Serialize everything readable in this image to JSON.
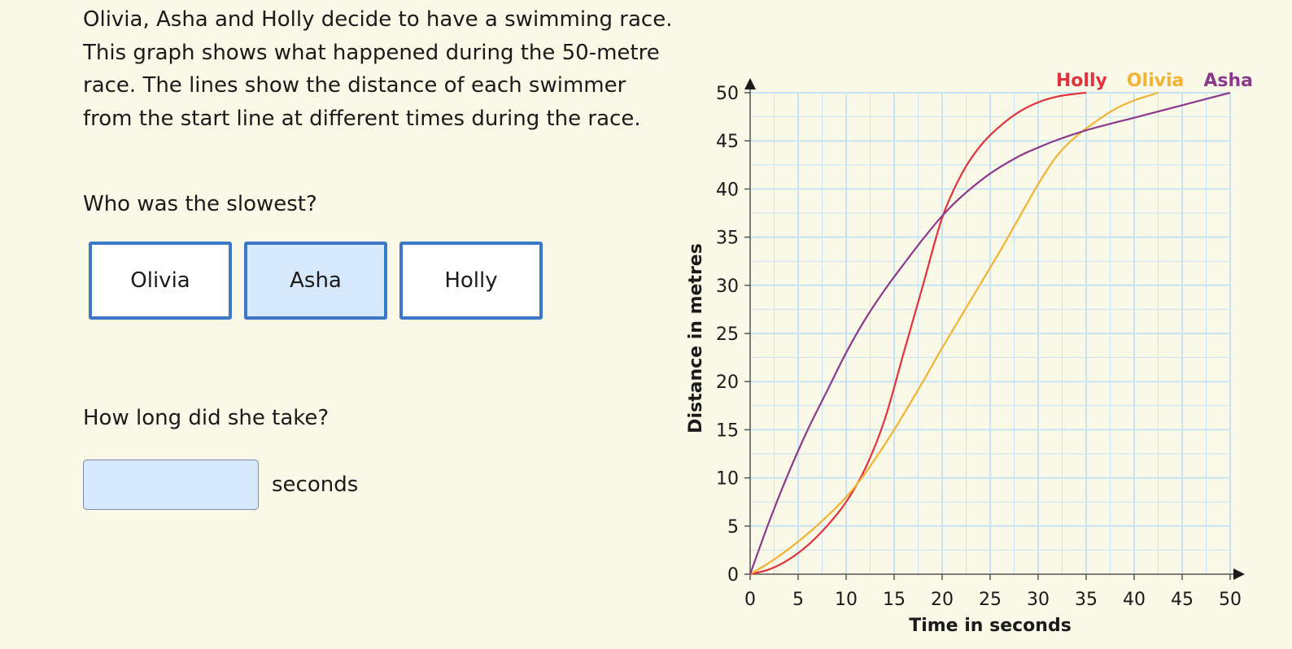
{
  "intro_text": "Olivia, Asha and Holly decide to have a swimming race. This graph shows what happened during the 50-metre race. The lines show the distance of each swimmer from the start line at different times during the race.",
  "question1": "Who was the slowest?",
  "choices": [
    "Olivia",
    "Asha",
    "Holly"
  ],
  "selected_choice": "Asha",
  "question2": "How long did she take?",
  "answer": {
    "value": "",
    "unit": "seconds"
  },
  "colors": {
    "background": "#faf8e6",
    "choice_border": "#3a78c9",
    "selected_fill": "#d6e8fb",
    "grid": "#c8e4f4"
  },
  "chart_data": {
    "type": "line",
    "xlabel": "Time in seconds",
    "ylabel": "Distance in metres",
    "xlim": [
      0,
      50
    ],
    "ylim": [
      0,
      50
    ],
    "xticks": [
      0,
      5,
      10,
      15,
      20,
      25,
      30,
      35,
      40,
      45,
      50
    ],
    "yticks": [
      0,
      5,
      10,
      15,
      20,
      25,
      30,
      35,
      40,
      45,
      50
    ],
    "grid": true,
    "legend": "top-right",
    "series": [
      {
        "name": "Holly",
        "color": "#e0323c",
        "x": [
          0,
          2,
          4,
          6,
          8,
          10,
          12,
          14,
          16,
          18,
          20,
          22,
          24,
          26,
          28,
          30,
          32,
          34,
          35
        ],
        "y": [
          0,
          0.5,
          1.5,
          3,
          5,
          7.5,
          11,
          16,
          23,
          30,
          37,
          41.5,
          44.5,
          46.5,
          48,
          49,
          49.6,
          49.9,
          50
        ]
      },
      {
        "name": "Olivia",
        "color": "#f2b233",
        "x": [
          0,
          2,
          4,
          6,
          8,
          10,
          12,
          15,
          18,
          20,
          23,
          26,
          28,
          30,
          32,
          34,
          36,
          38,
          40,
          42.5
        ],
        "y": [
          0,
          1.2,
          2.6,
          4.2,
          6,
          8,
          10.5,
          15,
          20,
          23.5,
          28.5,
          33.5,
          37,
          40.5,
          43.5,
          45.5,
          47,
          48.3,
          49.2,
          50
        ]
      },
      {
        "name": "Asha",
        "color": "#8b3a8b",
        "x": [
          0,
          2,
          4,
          6,
          8,
          10,
          12,
          14,
          16,
          18,
          20,
          22,
          25,
          28,
          30,
          32,
          35,
          38,
          40,
          45,
          50
        ],
        "y": [
          0,
          5.5,
          10.5,
          15,
          19,
          23,
          26.5,
          29.5,
          32.2,
          34.8,
          37.2,
          39.2,
          41.6,
          43.4,
          44.3,
          45.1,
          46.1,
          46.9,
          47.4,
          48.7,
          50
        ]
      }
    ]
  }
}
